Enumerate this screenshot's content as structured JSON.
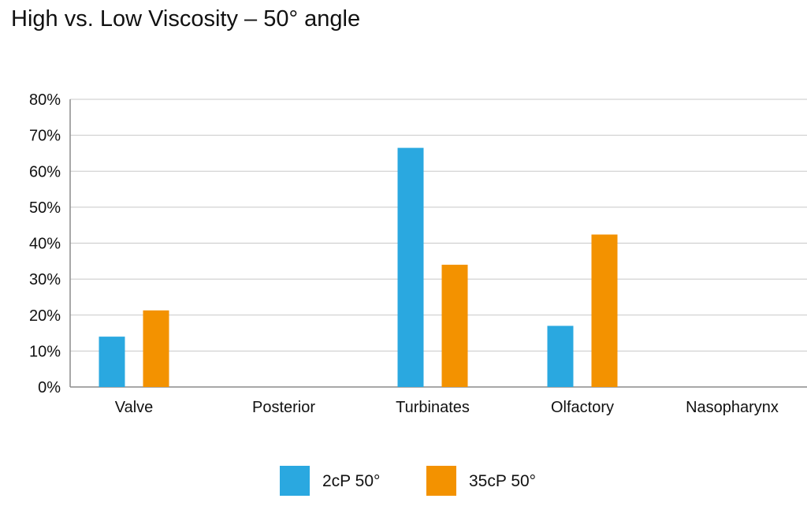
{
  "chart_data": {
    "type": "bar",
    "title": "High vs. Low Viscosity – 50° angle",
    "xlabel": "",
    "ylabel": "",
    "ylim": [
      0,
      0.8
    ],
    "y_ticks": [
      0,
      0.1,
      0.2,
      0.3,
      0.4,
      0.5,
      0.6,
      0.7,
      0.8
    ],
    "y_tick_labels": [
      "0%",
      "10%",
      "20%",
      "30%",
      "40%",
      "50%",
      "60%",
      "70%",
      "80%"
    ],
    "grid": true,
    "legend_position": "bottom-center",
    "categories": [
      "Valve",
      "Posterior",
      "Turbinates",
      "Olfactory",
      "Nasopharynx"
    ],
    "series": [
      {
        "name": "2cP 50°",
        "color": "#2aa8e0",
        "values": [
          0.14,
          0,
          0.665,
          0.17,
          0
        ]
      },
      {
        "name": "35cP 50°",
        "color": "#f39200",
        "values": [
          0.213,
          0,
          0.34,
          0.424,
          0
        ]
      }
    ]
  }
}
